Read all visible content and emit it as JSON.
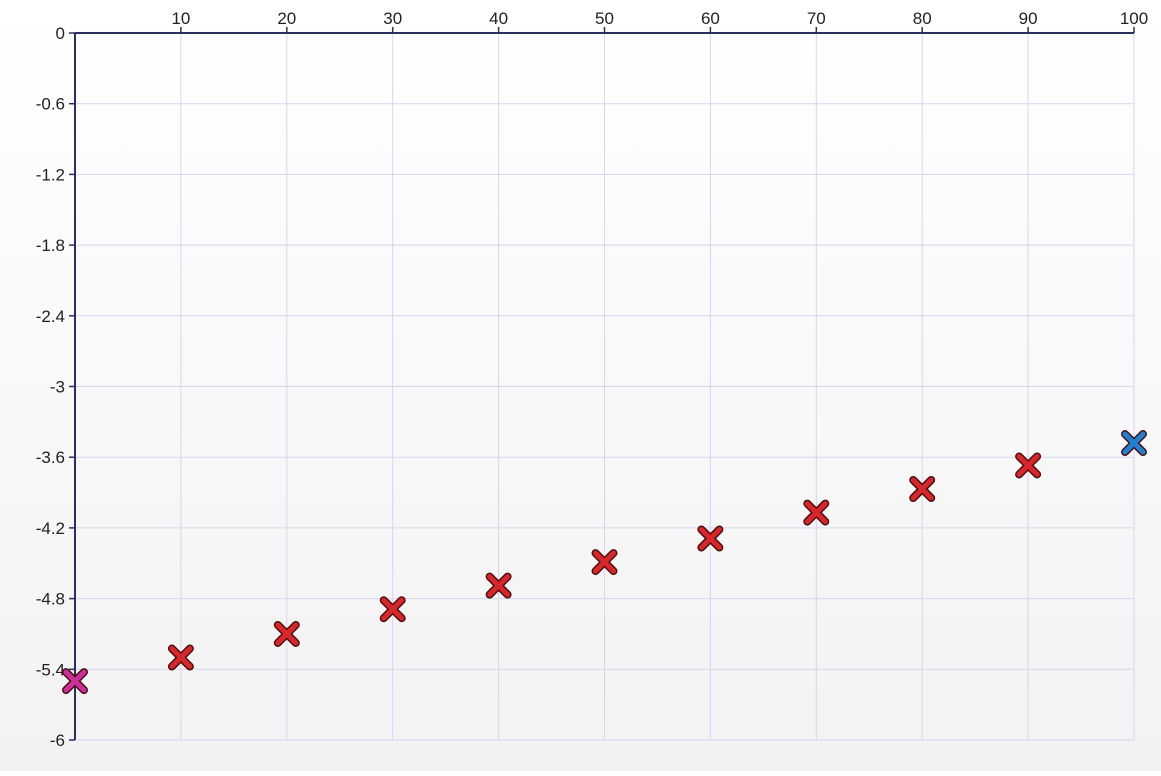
{
  "chart_data": {
    "type": "scatter",
    "title": "",
    "xlabel": "",
    "ylabel": "",
    "xlim": [
      0,
      100
    ],
    "ylim": [
      -6,
      0
    ],
    "x_axis_position": "top",
    "grid": true,
    "x_ticks": [
      {
        "value": 10,
        "label": "10"
      },
      {
        "value": 20,
        "label": "20"
      },
      {
        "value": 30,
        "label": "30"
      },
      {
        "value": 40,
        "label": "40"
      },
      {
        "value": 50,
        "label": "50"
      },
      {
        "value": 60,
        "label": "60"
      },
      {
        "value": 70,
        "label": "70"
      },
      {
        "value": 80,
        "label": "80"
      },
      {
        "value": 90,
        "label": "90"
      },
      {
        "value": 100,
        "label": "100"
      }
    ],
    "y_ticks": [
      {
        "value": 0,
        "label": "0"
      },
      {
        "value": -0.6,
        "label": "-0.6"
      },
      {
        "value": -1.2,
        "label": "-1.2"
      },
      {
        "value": -1.8,
        "label": "-1.8"
      },
      {
        "value": -2.4,
        "label": "-2.4"
      },
      {
        "value": -3,
        "label": "-3"
      },
      {
        "value": -3.6,
        "label": "-3.6"
      },
      {
        "value": -4.2,
        "label": "-4.2"
      },
      {
        "value": -4.8,
        "label": "-4.8"
      },
      {
        "value": -5.4,
        "label": "-5.4"
      },
      {
        "value": -6,
        "label": "-6"
      }
    ],
    "series": [
      {
        "color": "#d8262a",
        "x": [
          10,
          20,
          30,
          40,
          50,
          60,
          70,
          80,
          90
        ],
        "y": [
          -5.3,
          -5.1,
          -4.89,
          -4.69,
          -4.49,
          -4.29,
          -4.07,
          -3.87,
          -3.67
        ]
      },
      {
        "color": "#cc2f9c",
        "x": [
          0
        ],
        "y": [
          -5.5
        ]
      },
      {
        "color": "#1f7fd1",
        "x": [
          100
        ],
        "y": [
          -3.48
        ]
      }
    ],
    "colors": {
      "gridline": "#d6d6ee",
      "axis": "#2b2f5e",
      "marker_outline": "#4a1010",
      "background_top": "#ffffff",
      "background_bottom": "#f2f2f2"
    }
  }
}
